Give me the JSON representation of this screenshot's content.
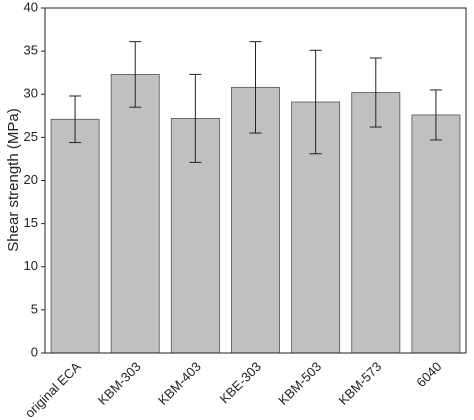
{
  "chart_data": {
    "type": "bar",
    "y_label": "Shear strength (MPa)",
    "categories": [
      "original ECA",
      "KBM-303",
      "KBM-403",
      "KBE-303",
      "KBM-503",
      "KBM-573",
      "6040"
    ],
    "values": [
      27.1,
      32.3,
      27.2,
      30.8,
      29.1,
      30.2,
      27.6
    ],
    "errors": [
      2.7,
      3.8,
      5.1,
      5.3,
      6.0,
      4.0,
      2.9
    ],
    "color": "#c0c0c0",
    "ylim": [
      0,
      40
    ],
    "yticks": [
      0,
      5,
      10,
      15,
      20,
      25,
      30,
      35,
      40
    ]
  }
}
